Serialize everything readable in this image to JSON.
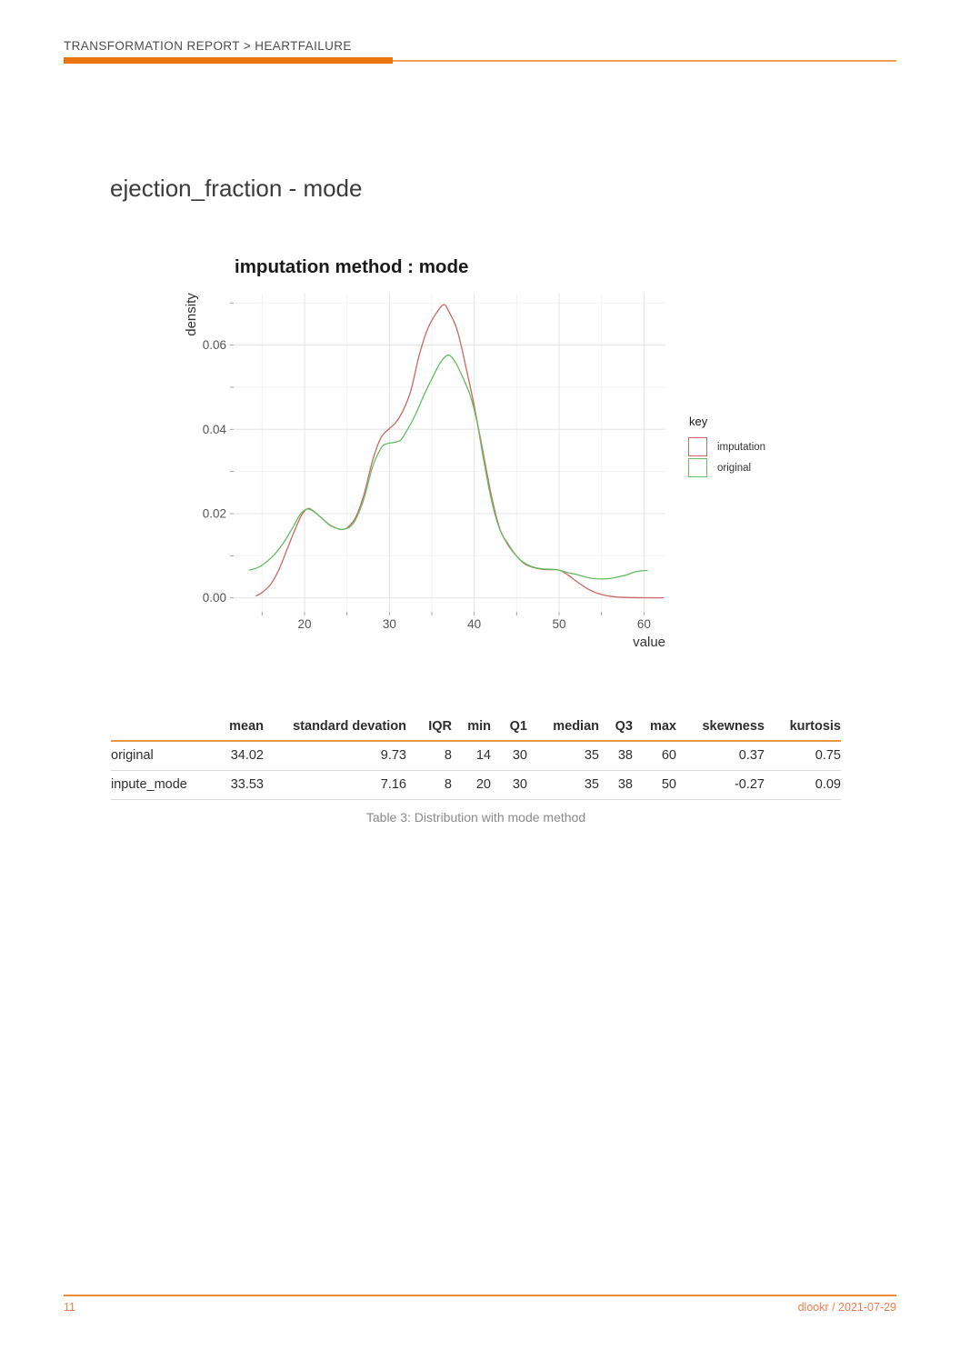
{
  "header": {
    "breadcrumb": "TRANSFORMATION REPORT > HEARTFAILURE"
  },
  "title": "ejection_fraction - mode",
  "colors": {
    "accent_orange": "#E8750F",
    "light_orange": "#F2A25B",
    "table_header_line": "#E8963F",
    "footer_orange": "#F08050",
    "imputation": "#C86A60",
    "original": "#65BD64",
    "grid_major": "#E4E4E4",
    "grid_minor": "#F2F2F2",
    "tick_text": "#555555",
    "axis_title_text": "#333333"
  },
  "chart_data": {
    "type": "line",
    "title": "imputation method : mode",
    "xlabel": "value",
    "ylabel": "density",
    "xlim": [
      11.6,
      62.5
    ],
    "ylim": [
      -0.0033,
      0.0717
    ],
    "x_ticks": [
      20,
      30,
      40,
      50,
      60
    ],
    "x_minor_ticks": [
      15,
      25,
      35,
      45,
      55
    ],
    "y_ticks": [
      0,
      0.02,
      0.04,
      0.06
    ],
    "y_minor_ticks": [
      0.01,
      0.03,
      0.05,
      0.07
    ],
    "grid": true,
    "legend_title": "key",
    "legend_position": "right",
    "series": [
      {
        "name": "imputation",
        "color": "#C86A60",
        "points": [
          [
            14.3,
            0.0005
          ],
          [
            15,
            0.0013
          ],
          [
            16,
            0.0032
          ],
          [
            17,
            0.0068
          ],
          [
            18,
            0.0118
          ],
          [
            19,
            0.0168
          ],
          [
            19.7,
            0.0198
          ],
          [
            20.4,
            0.0212
          ],
          [
            21,
            0.0207
          ],
          [
            22,
            0.019
          ],
          [
            23,
            0.0173
          ],
          [
            24,
            0.0164
          ],
          [
            24.5,
            0.0163
          ],
          [
            25,
            0.0166
          ],
          [
            26,
            0.019
          ],
          [
            27,
            0.0245
          ],
          [
            28,
            0.0325
          ],
          [
            29,
            0.038
          ],
          [
            30,
            0.0402
          ],
          [
            30.7,
            0.0415
          ],
          [
            31.5,
            0.044
          ],
          [
            32.5,
            0.049
          ],
          [
            33.5,
            0.0575
          ],
          [
            34.5,
            0.0638
          ],
          [
            35.5,
            0.0675
          ],
          [
            36.4,
            0.0696
          ],
          [
            37,
            0.068
          ],
          [
            38,
            0.0635
          ],
          [
            39,
            0.055
          ],
          [
            40,
            0.0455
          ],
          [
            41,
            0.035
          ],
          [
            42,
            0.0245
          ],
          [
            43,
            0.0165
          ],
          [
            44,
            0.0125
          ],
          [
            45,
            0.0099
          ],
          [
            46,
            0.008
          ],
          [
            47,
            0.0072
          ],
          [
            48,
            0.0068
          ],
          [
            49,
            0.0067
          ],
          [
            50,
            0.0066
          ],
          [
            51,
            0.0055
          ],
          [
            52,
            0.004
          ],
          [
            53,
            0.0026
          ],
          [
            54,
            0.0015
          ],
          [
            55,
            0.0008
          ],
          [
            56,
            0.0004
          ],
          [
            57,
            0.0002
          ],
          [
            58,
            0.0001
          ],
          [
            60,
            5e-05
          ],
          [
            62.3,
            3e-05
          ]
        ]
      },
      {
        "name": "original",
        "color": "#65BD64",
        "points": [
          [
            13.5,
            0.0066
          ],
          [
            14.5,
            0.0072
          ],
          [
            15.5,
            0.0085
          ],
          [
            16.5,
            0.0104
          ],
          [
            17.5,
            0.013
          ],
          [
            18.5,
            0.0163
          ],
          [
            19.5,
            0.0198
          ],
          [
            20.3,
            0.0211
          ],
          [
            21,
            0.0206
          ],
          [
            22,
            0.019
          ],
          [
            23,
            0.0172
          ],
          [
            24,
            0.0164
          ],
          [
            24.6,
            0.0163
          ],
          [
            25.3,
            0.0168
          ],
          [
            26,
            0.0185
          ],
          [
            27,
            0.0235
          ],
          [
            28,
            0.031
          ],
          [
            29,
            0.0355
          ],
          [
            29.7,
            0.0366
          ],
          [
            30.5,
            0.0369
          ],
          [
            31.3,
            0.0374
          ],
          [
            32,
            0.0395
          ],
          [
            33,
            0.0432
          ],
          [
            34,
            0.0478
          ],
          [
            35,
            0.052
          ],
          [
            36,
            0.0558
          ],
          [
            36.9,
            0.0576
          ],
          [
            37.7,
            0.0562
          ],
          [
            38.5,
            0.053
          ],
          [
            39.5,
            0.0482
          ],
          [
            40.3,
            0.042
          ],
          [
            41,
            0.034
          ],
          [
            42,
            0.0235
          ],
          [
            43,
            0.0163
          ],
          [
            44,
            0.0128
          ],
          [
            45,
            0.0099
          ],
          [
            46,
            0.0082
          ],
          [
            47,
            0.0073
          ],
          [
            48,
            0.0069
          ],
          [
            49,
            0.0068
          ],
          [
            50,
            0.0066
          ],
          [
            51,
            0.006
          ],
          [
            52,
            0.0056
          ],
          [
            53,
            0.005
          ],
          [
            54,
            0.0046
          ],
          [
            55,
            0.0045
          ],
          [
            56,
            0.0046
          ],
          [
            57,
            0.005
          ],
          [
            58,
            0.0055
          ],
          [
            59,
            0.0062
          ],
          [
            60,
            0.0065
          ],
          [
            60.4,
            0.0065
          ]
        ]
      }
    ]
  },
  "table": {
    "columns": [
      "",
      "mean",
      "standard devation",
      "IQR",
      "min",
      "Q1",
      "median",
      "Q3",
      "max",
      "skewness",
      "kurtosis"
    ],
    "rows": [
      {
        "name": "original",
        "values": [
          "34.02",
          "9.73",
          "8",
          "14",
          "30",
          "35",
          "38",
          "60",
          "0.37",
          "0.75"
        ]
      },
      {
        "name": "inpute_mode",
        "values": [
          "33.53",
          "7.16",
          "8",
          "20",
          "30",
          "35",
          "38",
          "50",
          "-0.27",
          "0.09"
        ]
      }
    ],
    "caption": "Table 3: Distribution with mode method"
  },
  "footer": {
    "page_number": "11",
    "source": "dlookr / 2021-07-29"
  }
}
